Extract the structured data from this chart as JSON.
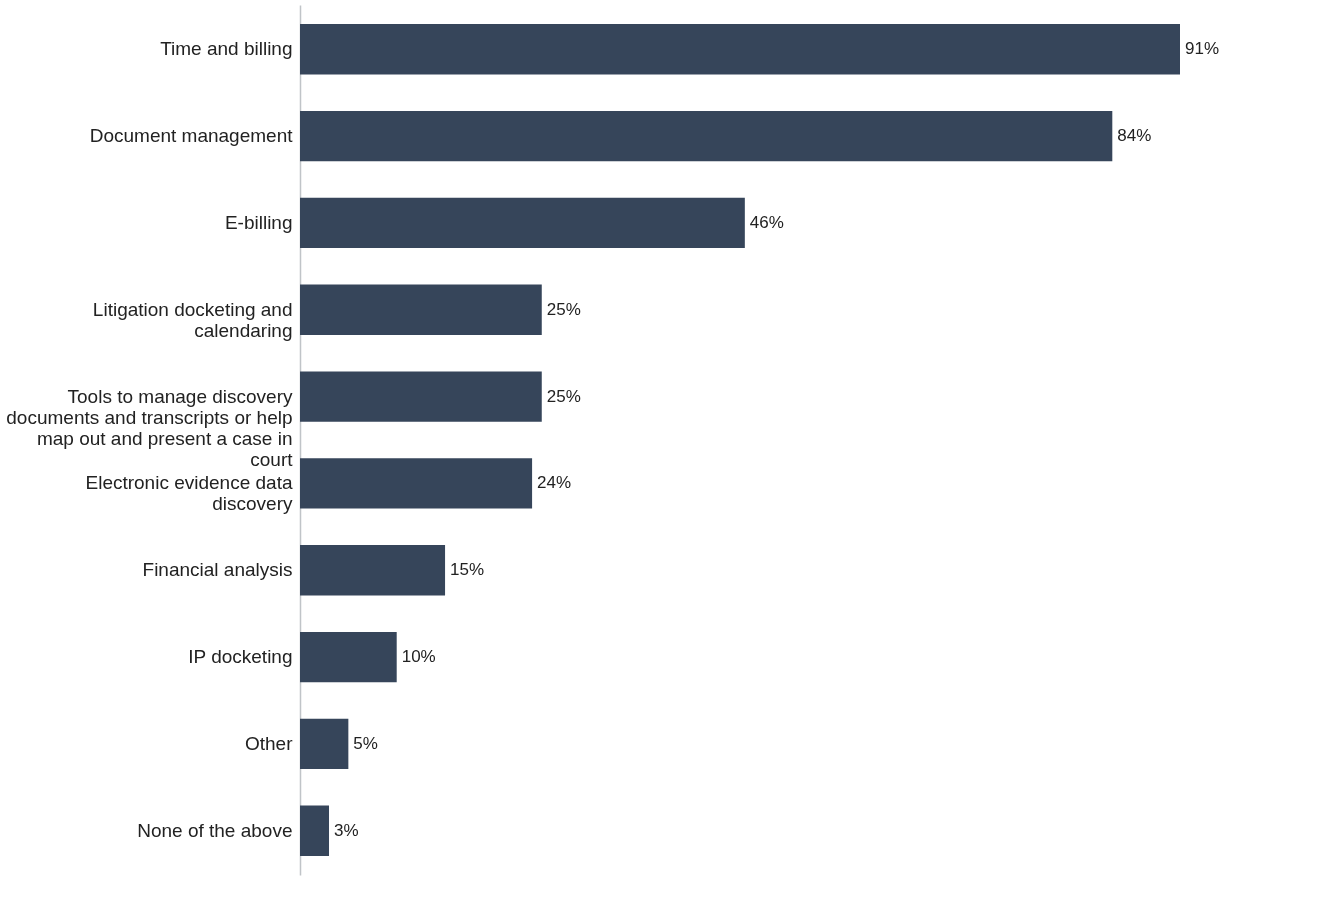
{
  "chart_data": {
    "type": "bar",
    "orientation": "horizontal",
    "categories": [
      "Time and billing",
      "Document management",
      "E-billing",
      "Litigation docketing and calendaring",
      "Tools to manage discovery documents and transcripts or help map out and present a case in court",
      "Electronic evidence data discovery",
      "Financial analysis",
      "IP docketing",
      "Other",
      "None of the above"
    ],
    "values": [
      91,
      84,
      46,
      25,
      25,
      24,
      15,
      10,
      5,
      3
    ],
    "value_labels": [
      "91%",
      "84%",
      "46%",
      "25%",
      "25%",
      "24%",
      "15%",
      "10%",
      "5%",
      "3%"
    ],
    "color": "#36455a"
  }
}
